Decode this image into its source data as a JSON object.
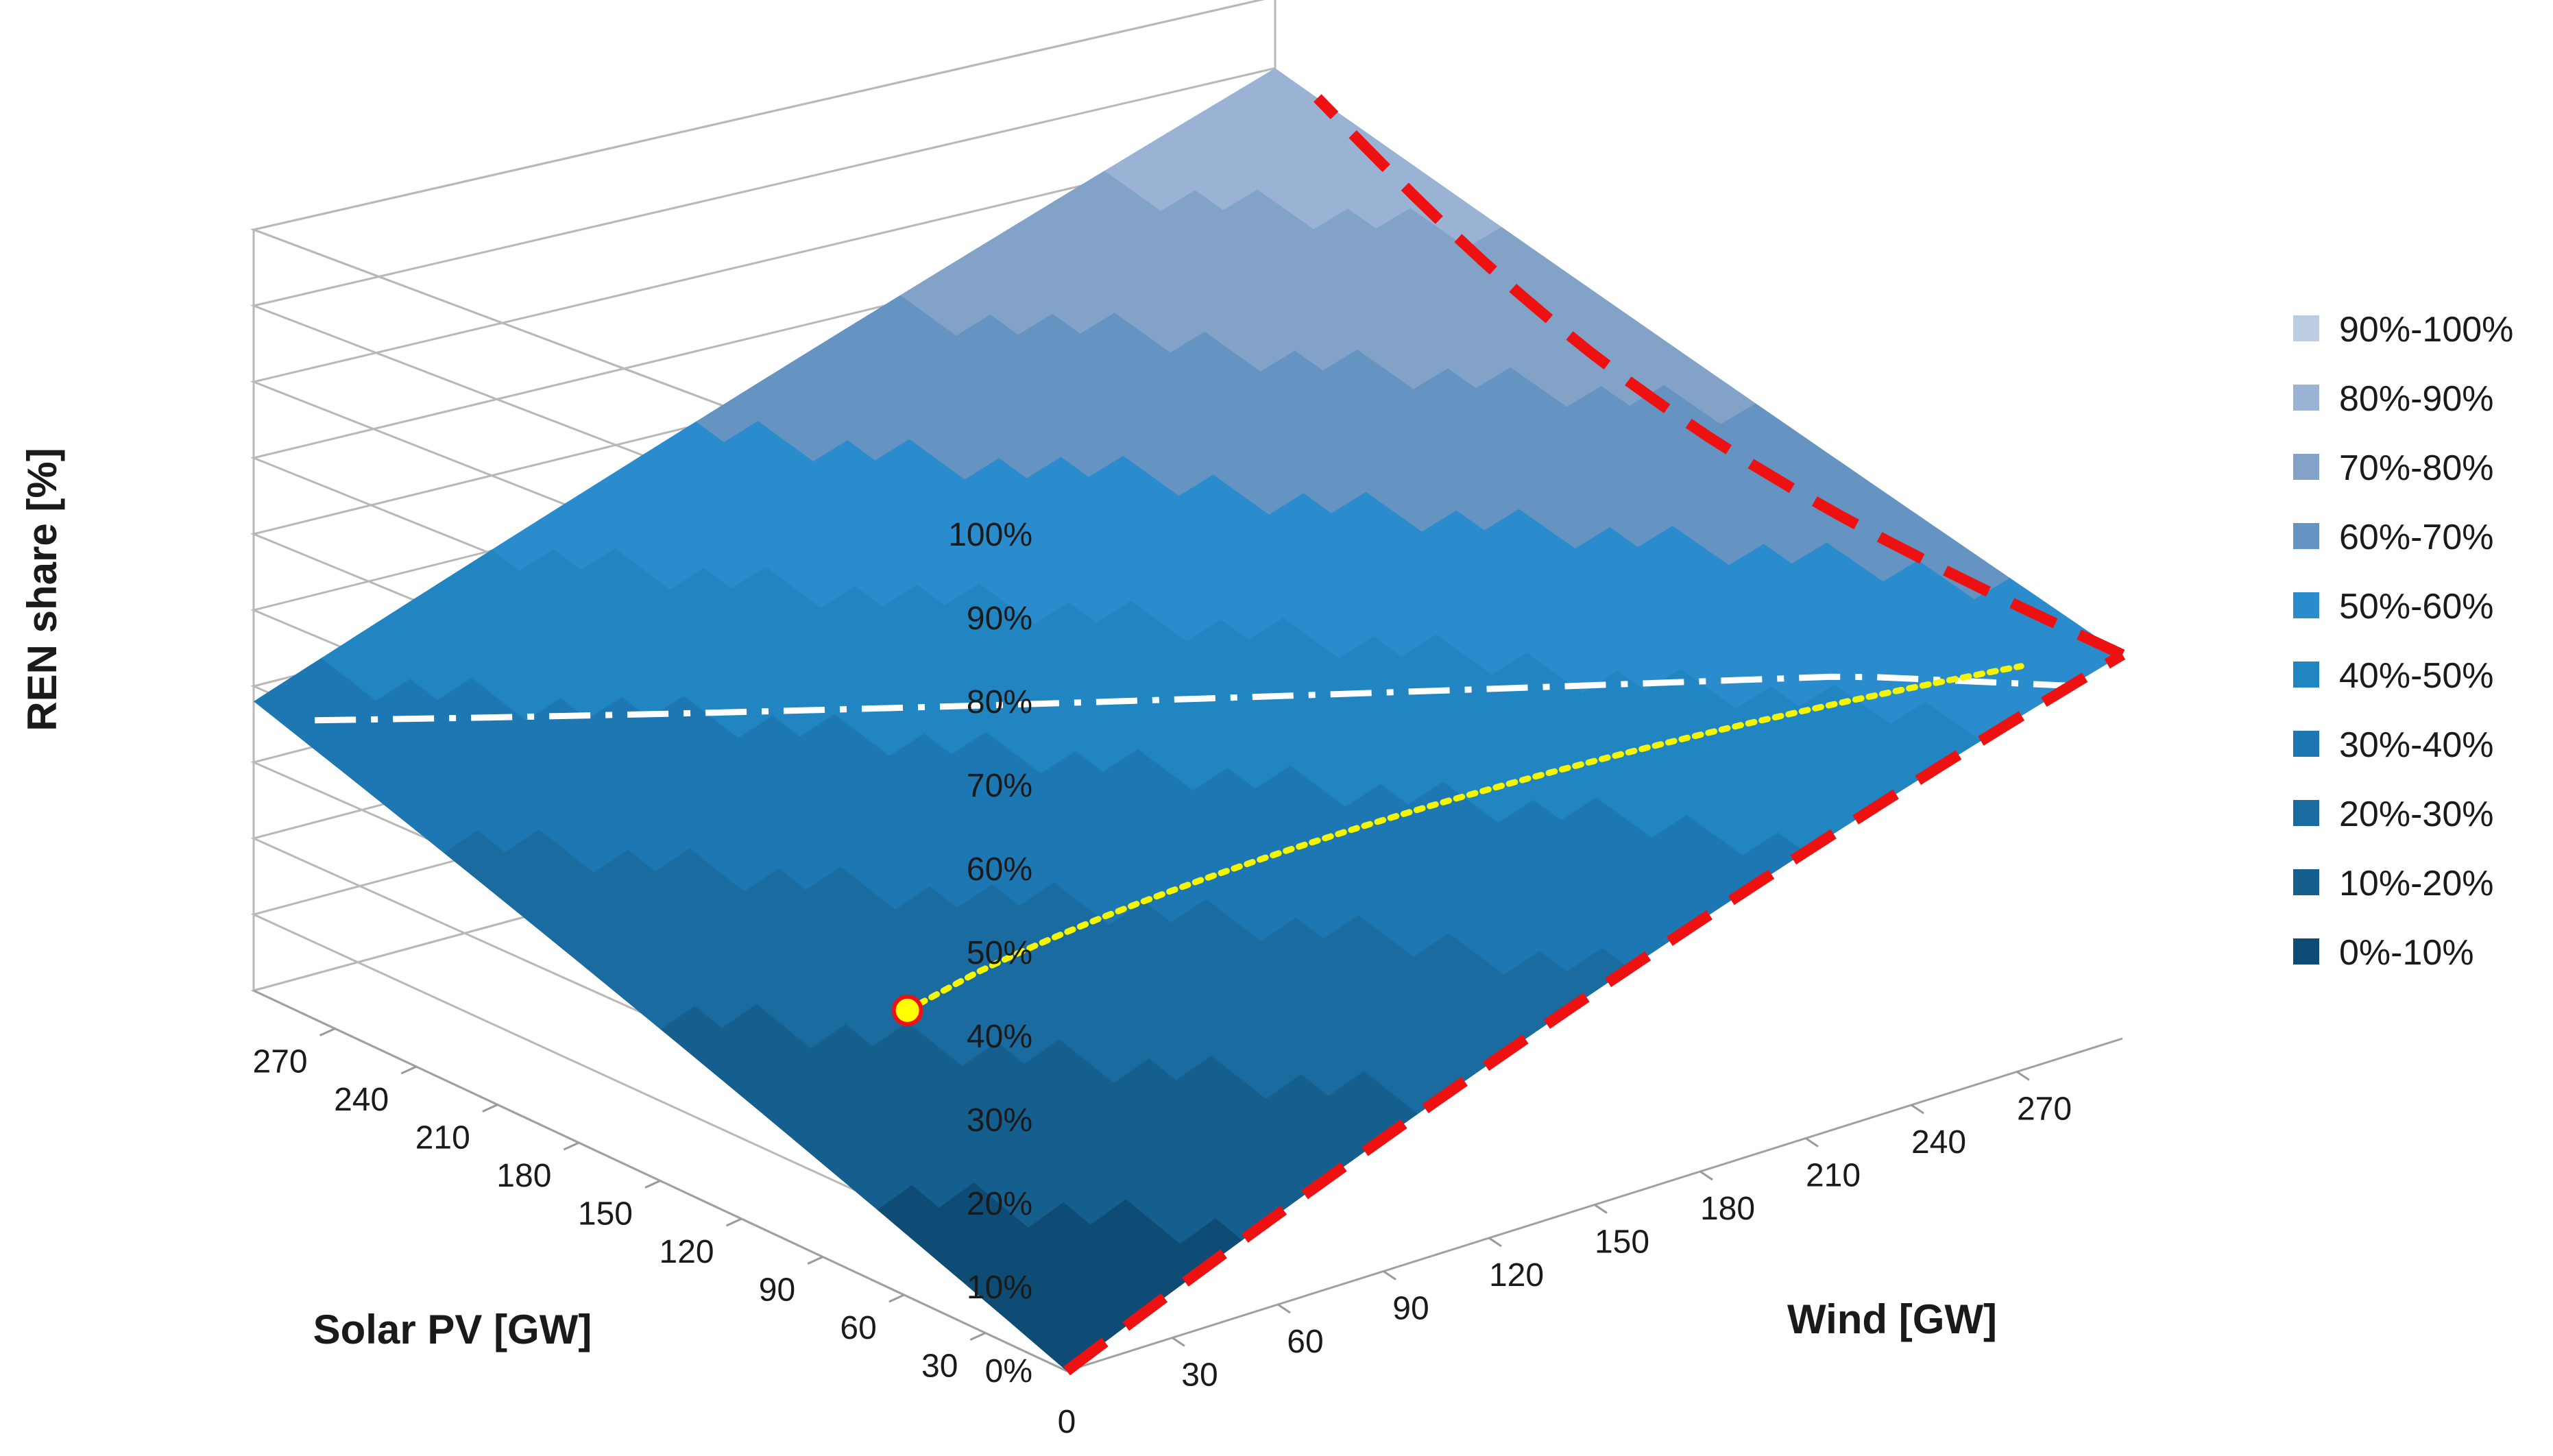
{
  "chart_data": {
    "type": "surface",
    "title": "",
    "zlabel": "REN share [%]",
    "xlabel": "Wind [GW]",
    "ylabel": "Solar PV [GW]",
    "z_ticks": [
      "0%",
      "10%",
      "20%",
      "30%",
      "40%",
      "50%",
      "60%",
      "70%",
      "80%",
      "90%",
      "100%"
    ],
    "zlim": [
      0,
      100
    ],
    "x_ticks": [
      "30",
      "60",
      "90",
      "120",
      "150",
      "180",
      "210",
      "240",
      "270"
    ],
    "y_ticks": [
      "30",
      "60",
      "90",
      "120",
      "150",
      "180",
      "210",
      "240",
      "270"
    ],
    "origin_label": "0",
    "xlim": [
      0,
      300
    ],
    "ylim": [
      0,
      300
    ],
    "corner_values": {
      "wind0_solar0": 0,
      "wind300_solar0": 56,
      "wind0_solar300": 38,
      "wind300_solar300": 90
    },
    "legend": [
      "90%-100%",
      "80%-90%",
      "70%-80%",
      "60%-70%",
      "50%-60%",
      "40%-50%",
      "30%-40%",
      "20%-30%",
      "10%-20%",
      "0%-10%"
    ],
    "band_colors": [
      "#0f4c75",
      "#155f8f",
      "#1a6ba0",
      "#1d77b3",
      "#2085c1",
      "#2a8ccc",
      "#6593c2",
      "#83a2c7",
      "#9ab3d4",
      "#bccde3"
    ],
    "series": [
      {
        "name": "white dash-dot line",
        "style": "dash-dot",
        "color": "#ffffff"
      },
      {
        "name": "yellow dotted path",
        "style": "dotted",
        "color": "#f5f500"
      },
      {
        "name": "red dashed line",
        "style": "dashed",
        "color": "#ee1111"
      },
      {
        "name": "marker",
        "style": "point",
        "color": "#ffff00"
      }
    ]
  }
}
